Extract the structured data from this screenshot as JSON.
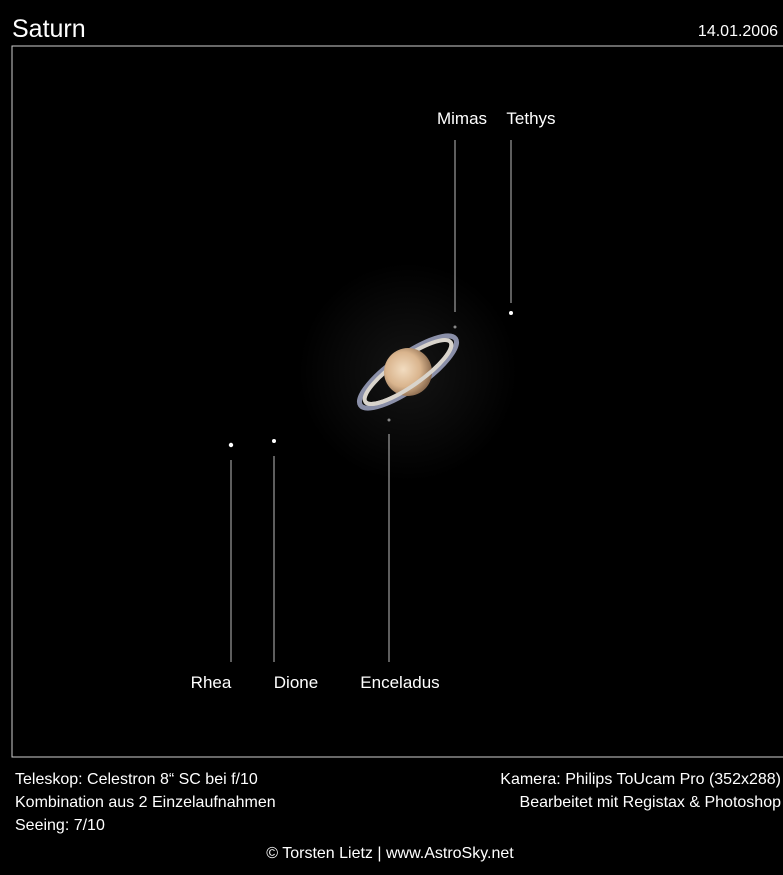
{
  "header": {
    "title": "Saturn",
    "date": "14.01.2006"
  },
  "moons": [
    {
      "label": "Mimas"
    },
    {
      "label": "Tethys"
    },
    {
      "label": "Rhea"
    },
    {
      "label": "Dione"
    },
    {
      "label": "Enceladus"
    }
  ],
  "footer": {
    "left": [
      "Teleskop: Celestron 8“ SC bei f/10",
      "Kombination aus 2 Einzelaufnahmen",
      "Seeing: 7/10"
    ],
    "right": [
      "Kamera: Philips ToUcam Pro (352x288)",
      "Bearbeitet mit Registax & Photoshop"
    ],
    "credit": "© Torsten Lietz | www.AstroSky.net"
  }
}
